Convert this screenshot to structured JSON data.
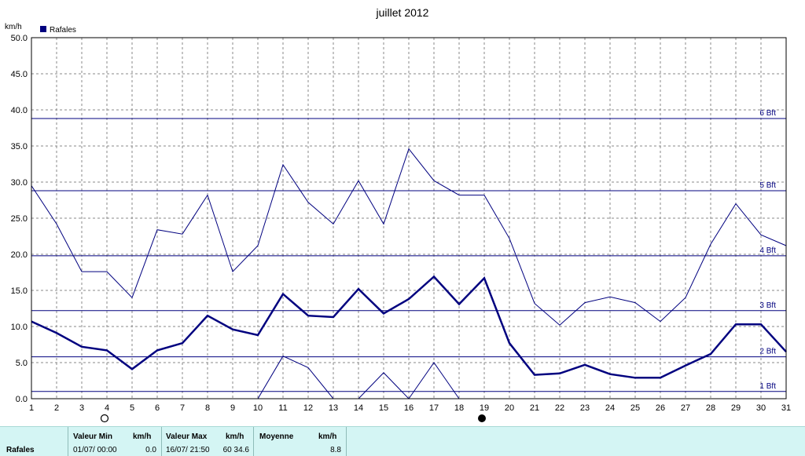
{
  "chart_data": {
    "type": "line",
    "title": "juillet 2012",
    "ylabel": "km/h",
    "ylim": [
      0,
      50
    ],
    "yticks": [
      "0.0",
      "5.0",
      "10.0",
      "15.0",
      "20.0",
      "25.0",
      "30.0",
      "35.0",
      "40.0",
      "45.0",
      "50.0"
    ],
    "x": [
      1,
      2,
      3,
      4,
      5,
      6,
      7,
      8,
      9,
      10,
      11,
      12,
      13,
      14,
      15,
      16,
      17,
      18,
      19,
      20,
      21,
      22,
      23,
      24,
      25,
      26,
      27,
      28,
      29,
      30,
      31
    ],
    "grid": true,
    "legend": {
      "label": "Rafales",
      "position": "top-left"
    },
    "series": [
      {
        "name": "Rafales",
        "role": "max",
        "values": [
          29.5,
          24.2,
          17.6,
          17.6,
          14.0,
          23.4,
          22.8,
          28.2,
          17.6,
          21.2,
          32.4,
          27.2,
          24.2,
          30.2,
          24.2,
          34.6,
          30.2,
          28.2,
          28.2,
          22.2,
          13.2,
          10.2,
          13.3,
          14.1,
          13.3,
          10.7,
          14.0,
          21.4,
          27.0,
          22.7,
          21.2
        ]
      },
      {
        "name": "",
        "role": "mean",
        "values": [
          10.7,
          9.1,
          7.2,
          6.7,
          4.1,
          6.7,
          7.7,
          11.5,
          9.6,
          8.8,
          14.5,
          11.5,
          11.3,
          15.2,
          11.8,
          13.8,
          16.9,
          13.1,
          16.7,
          7.7,
          3.3,
          3.5,
          4.7,
          3.4,
          2.9,
          2.9,
          4.6,
          6.2,
          10.3,
          10.3,
          6.5
        ]
      },
      {
        "name": "",
        "role": "min",
        "values": [
          null,
          null,
          null,
          null,
          null,
          null,
          null,
          null,
          null,
          0.0,
          5.9,
          4.3,
          0.0,
          0.0,
          3.6,
          0.0,
          5.0,
          0.0,
          null,
          null,
          null,
          null,
          null,
          null,
          null,
          null,
          null,
          null,
          null,
          null,
          null
        ]
      }
    ],
    "beaufort": [
      {
        "label": "1 Bft",
        "value": 1.0
      },
      {
        "label": "2 Bft",
        "value": 5.8
      },
      {
        "label": "3 Bft",
        "value": 12.2
      },
      {
        "label": "4 Bft",
        "value": 19.8
      },
      {
        "label": "5 Bft",
        "value": 28.8
      },
      {
        "label": "6 Bft",
        "value": 38.8
      }
    ],
    "moon": [
      {
        "day": 4,
        "phase": "full"
      },
      {
        "day": 19,
        "phase": "new"
      }
    ]
  },
  "colors": {
    "line": "#00007f",
    "grid": "#8a8a8a",
    "footer_bg": "#d4f5f4"
  },
  "footer": {
    "series_label": "Rafales",
    "min_header": "Valeur Min",
    "min_unit": "km/h",
    "min_date": "01/07/  00:00",
    "min_value": "0.0",
    "max_header": "Valeur Max",
    "max_unit": "km/h",
    "max_date": "16/07/  21:50",
    "max_value": "60 34.6",
    "mean_header": "Moyenne",
    "mean_unit": "km/h",
    "mean_value": "8.8"
  }
}
